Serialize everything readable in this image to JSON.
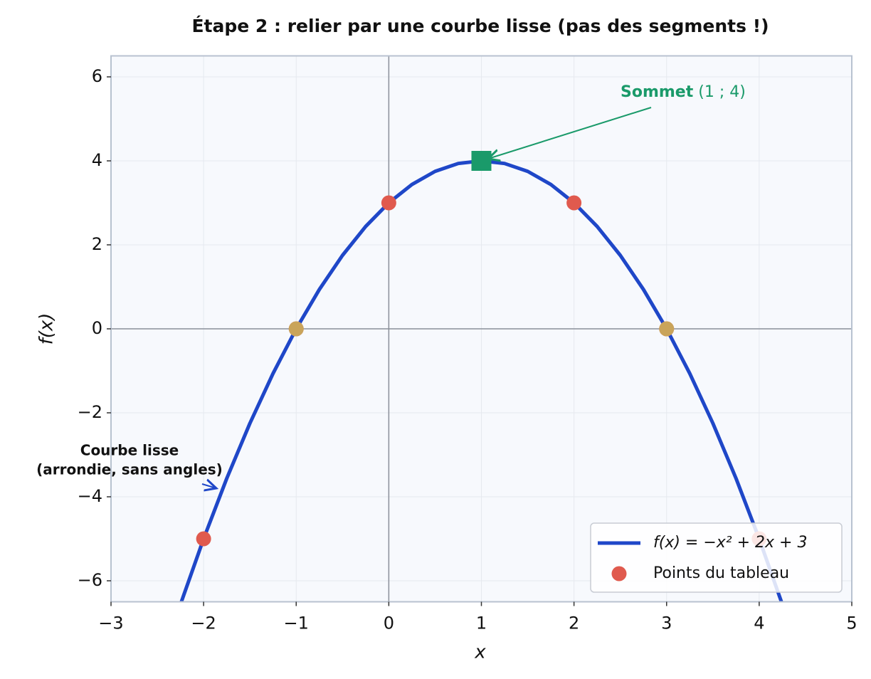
{
  "chart_data": {
    "type": "line",
    "title": "Étape 2 : relier par une courbe lisse (pas des segments !)",
    "x_label": "x",
    "y_label": "f(x)",
    "xlim": [
      -3,
      5
    ],
    "ylim": [
      -6.5,
      6.5
    ],
    "xticks": [
      {
        "value": -3,
        "label": "−3"
      },
      {
        "value": -2,
        "label": "−2"
      },
      {
        "value": -1,
        "label": "−1"
      },
      0,
      1,
      2,
      3,
      4,
      5
    ],
    "yticks": [
      {
        "value": -6,
        "label": "−6"
      },
      {
        "value": -4,
        "label": "−4"
      },
      {
        "value": -2,
        "label": "−2"
      },
      0,
      2,
      4,
      6
    ],
    "grid": true,
    "legend": "lower right",
    "series": [
      {
        "name": "f(x) = −x² + 2x + 3",
        "color": "#1f47c8",
        "style": "line",
        "x": [
          -2.25,
          -2,
          -1.75,
          -1.5,
          -1.25,
          -1,
          -0.75,
          -0.5,
          -0.25,
          0,
          0.25,
          0.5,
          0.75,
          1,
          1.25,
          1.5,
          1.75,
          2,
          2.25,
          2.5,
          2.75,
          3,
          3.25,
          3.5,
          3.75,
          4,
          4.25
        ],
        "values": [
          -6.5625,
          -5,
          -3.5625,
          -2.25,
          -1.0625,
          0,
          0.9375,
          1.75,
          2.4375,
          3,
          3.4375,
          3.75,
          3.9375,
          4,
          3.9375,
          3.75,
          3.4375,
          3,
          2.4375,
          1.75,
          0.9375,
          0,
          -1.0625,
          -2.25,
          -3.5625,
          -5,
          -6.5625
        ]
      },
      {
        "name": "Points du tableau",
        "color": "#e05a4e",
        "style": "points",
        "x": [
          -2,
          -1,
          0,
          1,
          2,
          3,
          4
        ],
        "values": [
          -5,
          0,
          3,
          4,
          3,
          0,
          -5
        ]
      }
    ],
    "roots": {
      "x": [
        -1,
        3
      ],
      "values": [
        0,
        0
      ],
      "color": "#c9a45a"
    },
    "vertex": {
      "x": 1,
      "values": 4,
      "color": "#1a9a6a"
    },
    "annotations": [
      {
        "text": "Sommet",
        "detail": "(1 ; 4)",
        "color": "#1a9a6a"
      },
      {
        "lines": [
          "Courbe lisse",
          "(arrondie, sans angles)"
        ],
        "color": "#1f47c8"
      }
    ]
  }
}
